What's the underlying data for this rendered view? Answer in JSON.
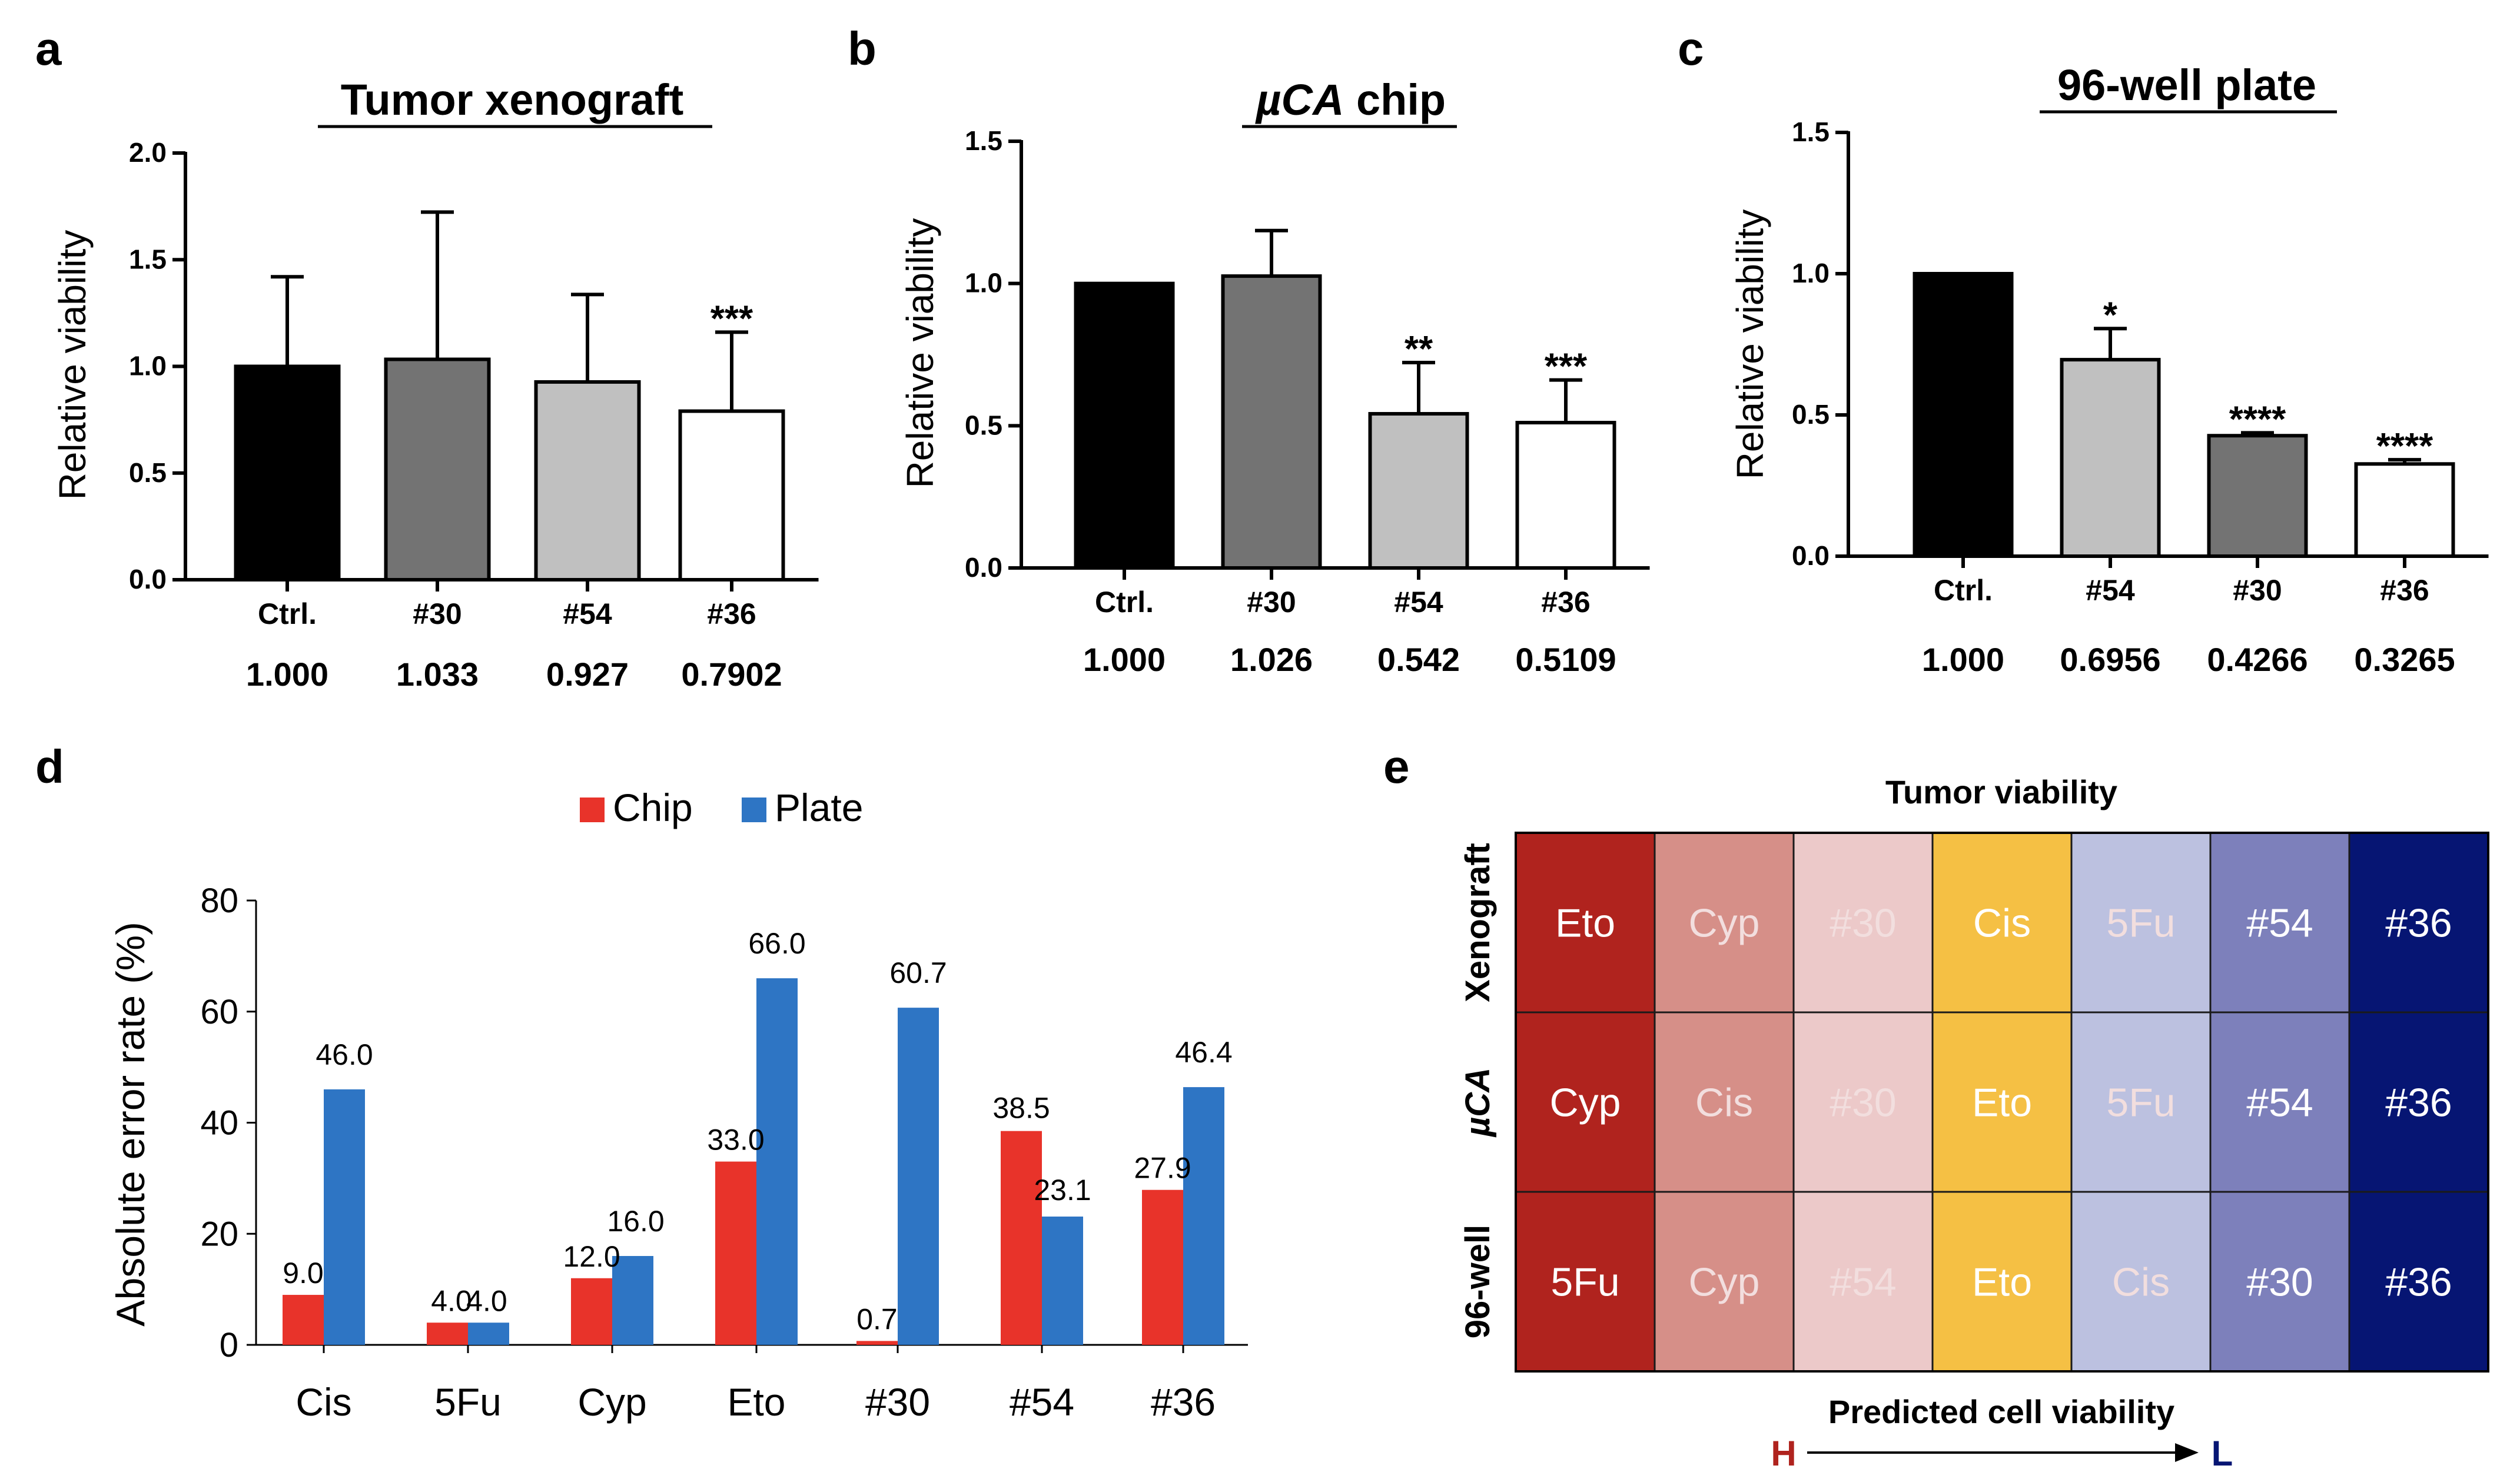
{
  "colors": {
    "black": "#000000",
    "dark_gray": "#737373",
    "light_gray": "#c0c0c0",
    "white": "#ffffff",
    "chip": "#e8332a",
    "plate": "#2e75c4",
    "heat": [
      "#b0231e",
      "#d68f88",
      "#ecc9c9",
      "#f5c044",
      "#bcc1e0",
      "#7d80bb",
      "#061573"
    ],
    "heat_text_dark": "#f2dede",
    "heat_text_light": "#ffffff",
    "arrow_h": "#b0231e",
    "arrow_l": "#061573"
  },
  "chart_data": [
    {
      "panel": "a",
      "type": "bar",
      "title": "Tumor xenograft",
      "ylabel": "Relative viability",
      "ylim": [
        0,
        2.0
      ],
      "yticks": [
        "0.0",
        "0.5",
        "1.0",
        "1.5",
        "2.0"
      ],
      "ytick_values": [
        0,
        0.5,
        1.0,
        1.5,
        2.0
      ],
      "categories": [
        "Ctrl.",
        "#30",
        "#54",
        "#36"
      ],
      "values": [
        1.0,
        1.033,
        0.927,
        0.7902
      ],
      "errors": [
        0.42,
        0.69,
        0.41,
        0.37
      ],
      "value_labels": [
        "1.000",
        "1.033",
        "0.927",
        "0.7902"
      ],
      "significance": [
        "",
        "",
        "",
        "***"
      ],
      "bar_colors": [
        "black",
        "dark_gray",
        "light_gray",
        "white"
      ]
    },
    {
      "panel": "b",
      "type": "bar",
      "title_italic": "µCA",
      "title_rest": " chip",
      "ylabel": "Relative viability",
      "ylim": [
        0,
        1.5
      ],
      "yticks": [
        "0.0",
        "0.5",
        "1.0",
        "1.5"
      ],
      "ytick_values": [
        0,
        0.5,
        1.0,
        1.5
      ],
      "categories": [
        "Ctrl.",
        "#30",
        "#54",
        "#36"
      ],
      "values": [
        1.0,
        1.026,
        0.542,
        0.5109
      ],
      "errors": [
        0,
        0.16,
        0.18,
        0.15
      ],
      "value_labels": [
        "1.000",
        "1.026",
        "0.542",
        "0.5109"
      ],
      "significance": [
        "",
        "",
        "**",
        "***"
      ],
      "bar_colors": [
        "black",
        "dark_gray",
        "light_gray",
        "white"
      ]
    },
    {
      "panel": "c",
      "type": "bar",
      "title": "96-well plate",
      "ylabel": "Relative viability",
      "ylim": [
        0,
        1.5
      ],
      "yticks": [
        "0.0",
        "0.5",
        "1.0",
        "1.5"
      ],
      "ytick_values": [
        0,
        0.5,
        1.0,
        1.5
      ],
      "categories": [
        "Ctrl.",
        "#54",
        "#30",
        "#36"
      ],
      "values": [
        1.0,
        0.6956,
        0.4266,
        0.3265
      ],
      "errors": [
        0,
        0.11,
        0.01,
        0.015
      ],
      "value_labels": [
        "1.000",
        "0.6956",
        "0.4266",
        "0.3265"
      ],
      "significance": [
        "",
        "*",
        "****",
        "****"
      ],
      "bar_colors": [
        "black",
        "light_gray",
        "dark_gray",
        "white"
      ]
    },
    {
      "panel": "d",
      "type": "bar",
      "ylabel": "Absolute error rate (%)",
      "ylim": [
        0,
        80
      ],
      "yticks": [
        "0",
        "20",
        "40",
        "60",
        "80"
      ],
      "ytick_values": [
        0,
        20,
        40,
        60,
        80
      ],
      "categories": [
        "Cis",
        "5Fu",
        "Cyp",
        "Eto",
        "#30",
        "#54",
        "#36"
      ],
      "series": [
        {
          "name": "Chip",
          "color": "chip",
          "values": [
            9.0,
            4.0,
            12.0,
            33.0,
            0.7,
            38.5,
            27.9
          ],
          "labels": [
            "9.0",
            "4.0",
            "12.0",
            "33.0",
            "0.7",
            "38.5",
            "27.9"
          ]
        },
        {
          "name": "Plate",
          "color": "plate",
          "values": [
            46.0,
            4.0,
            16.0,
            66.0,
            60.7,
            23.1,
            46.4
          ],
          "labels": [
            "46.0",
            "4.0",
            "16.0",
            "66.0",
            "60.7",
            "23.1",
            "46.4"
          ]
        }
      ],
      "legend": "top"
    },
    {
      "panel": "e",
      "type": "heatmap",
      "title": "Tumor viability",
      "rows": [
        {
          "label": "Xenograft",
          "italic": false,
          "cells": [
            "Eto",
            "Cyp",
            "#30",
            "Cis",
            "5Fu",
            "#54",
            "#36"
          ]
        },
        {
          "label": "µCA",
          "italic": true,
          "cells": [
            "Cyp",
            "Cis",
            "#30",
            "Eto",
            "5Fu",
            "#54",
            "#36"
          ]
        },
        {
          "label": "96-well",
          "italic": false,
          "cells": [
            "5Fu",
            "Cyp",
            "#54",
            "Eto",
            "Cis",
            "#30",
            "#36"
          ]
        }
      ],
      "xlabel": "Predicted cell viability",
      "arrow_start": "H",
      "arrow_end": "L"
    }
  ],
  "panel_letters": [
    "a",
    "b",
    "c",
    "d",
    "e"
  ]
}
